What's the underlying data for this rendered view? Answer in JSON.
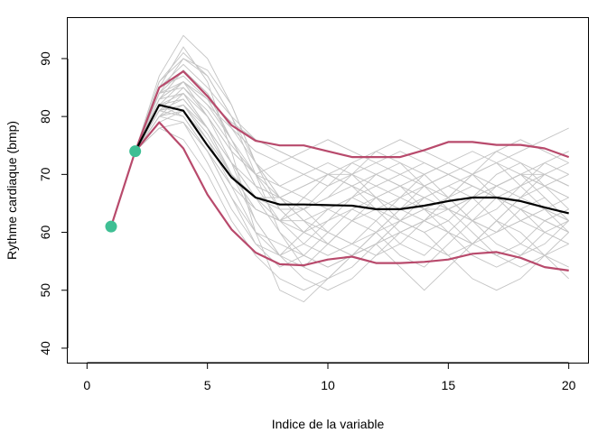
{
  "chart_data": {
    "type": "line",
    "xlabel": "Indice de la variable",
    "ylabel": "Rythme cardiaque (bmp)",
    "xlim": [
      -0.8,
      20.8
    ],
    "ylim": [
      37.5,
      97
    ],
    "x_ticks": [
      0,
      5,
      10,
      15,
      20
    ],
    "y_ticks": [
      40,
      50,
      60,
      70,
      80,
      90
    ],
    "grid": false,
    "colors": {
      "simulations": "#c4c4c4",
      "mean": "#000000",
      "bounds": "#b84a6c",
      "observed": "#3fbf94"
    },
    "observed_points": {
      "x": [
        1,
        2
      ],
      "y": [
        61,
        74
      ]
    },
    "series": [
      {
        "x": [
          2,
          3,
          4,
          5,
          6,
          7,
          8,
          9,
          10,
          11,
          12,
          13,
          14,
          15,
          16,
          17,
          18,
          19,
          20
        ],
        "y": [
          74,
          82,
          81,
          75,
          69.5,
          66,
          64.8,
          64.8,
          64.7,
          64.6,
          64,
          64,
          64.6,
          65.4,
          66,
          66,
          65.4,
          64.3,
          63.3
        ]
      },
      {
        "x": [
          2,
          3,
          4,
          5,
          6,
          7,
          8,
          9,
          10,
          11,
          12,
          13,
          14,
          15,
          16,
          17,
          18,
          19,
          20
        ],
        "y": [
          74,
          85,
          87.8,
          83.5,
          78.5,
          75.8,
          75,
          75,
          74,
          73,
          73,
          73,
          74.2,
          75.6,
          75.6,
          75.1,
          75.1,
          74.5,
          73
        ]
      },
      {
        "x": [
          2,
          3,
          4,
          5,
          6,
          7,
          8,
          9,
          10,
          11,
          12,
          13,
          14,
          15,
          16,
          17,
          18,
          19,
          20
        ],
        "y": [
          74,
          79,
          74.5,
          66.5,
          60.5,
          56.5,
          54.5,
          54.3,
          55.3,
          55.8,
          54.7,
          54.7,
          54.9,
          55.3,
          56.3,
          56.6,
          55.6,
          54,
          53.4
        ]
      }
    ],
    "simulations": [
      [
        74,
        86,
        90,
        88,
        82,
        72,
        64,
        60,
        58,
        62,
        66,
        68,
        64,
        60,
        58,
        62,
        66,
        70,
        68
      ],
      [
        74,
        84,
        88,
        84,
        76,
        68,
        66,
        64,
        60,
        58,
        60,
        64,
        68,
        66,
        62,
        60,
        64,
        66,
        62
      ],
      [
        74,
        82,
        86,
        80,
        72,
        62,
        56,
        54,
        58,
        62,
        60,
        56,
        54,
        58,
        62,
        66,
        64,
        60,
        58
      ],
      [
        74,
        80,
        84,
        78,
        70,
        64,
        62,
        66,
        70,
        68,
        64,
        60,
        62,
        66,
        70,
        72,
        68,
        64,
        60
      ],
      [
        74,
        85,
        92,
        86,
        74,
        60,
        50,
        48,
        52,
        56,
        58,
        54,
        50,
        54,
        58,
        62,
        60,
        56,
        52
      ],
      [
        74,
        83,
        86,
        82,
        78,
        74,
        72,
        70,
        68,
        70,
        72,
        74,
        72,
        70,
        68,
        66,
        68,
        70,
        72
      ],
      [
        74,
        81,
        80,
        74,
        66,
        58,
        54,
        56,
        60,
        64,
        62,
        58,
        56,
        60,
        64,
        68,
        70,
        66,
        62
      ],
      [
        74,
        84,
        85,
        80,
        74,
        70,
        68,
        66,
        64,
        62,
        64,
        66,
        68,
        70,
        68,
        66,
        64,
        62,
        64
      ],
      [
        74,
        87,
        94,
        90,
        82,
        72,
        66,
        62,
        60,
        58,
        56,
        58,
        62,
        66,
        70,
        74,
        72,
        68,
        64
      ],
      [
        74,
        80,
        82,
        76,
        68,
        60,
        56,
        58,
        62,
        66,
        70,
        72,
        70,
        66,
        62,
        58,
        56,
        58,
        62
      ],
      [
        74,
        82,
        84,
        80,
        74,
        70,
        72,
        74,
        76,
        74,
        72,
        70,
        68,
        70,
        72,
        74,
        76,
        74,
        72
      ],
      [
        74,
        78,
        76,
        70,
        62,
        56,
        52,
        50,
        52,
        56,
        60,
        62,
        60,
        56,
        52,
        50,
        52,
        56,
        58
      ],
      [
        74,
        83,
        88,
        84,
        78,
        72,
        68,
        70,
        72,
        70,
        66,
        62,
        60,
        62,
        66,
        70,
        72,
        70,
        68
      ],
      [
        74,
        81,
        83,
        78,
        72,
        66,
        62,
        60,
        62,
        64,
        66,
        68,
        66,
        64,
        62,
        60,
        62,
        64,
        66
      ],
      [
        74,
        85,
        89,
        85,
        80,
        76,
        74,
        72,
        70,
        68,
        66,
        64,
        66,
        68,
        70,
        72,
        74,
        76,
        78
      ],
      [
        74,
        80,
        79,
        72,
        64,
        58,
        56,
        60,
        64,
        66,
        64,
        62,
        64,
        66,
        68,
        66,
        64,
        62,
        60
      ],
      [
        74,
        84,
        86,
        82,
        76,
        70,
        64,
        60,
        58,
        56,
        58,
        62,
        66,
        68,
        66,
        62,
        58,
        56,
        54
      ],
      [
        74,
        79,
        81,
        76,
        70,
        66,
        64,
        64,
        66,
        68,
        70,
        68,
        66,
        64,
        66,
        68,
        70,
        68,
        66
      ],
      [
        74,
        86,
        91,
        87,
        80,
        72,
        66,
        64,
        66,
        70,
        74,
        76,
        74,
        72,
        70,
        68,
        70,
        72,
        70
      ],
      [
        74,
        82,
        80,
        74,
        66,
        60,
        58,
        56,
        54,
        56,
        60,
        64,
        66,
        64,
        60,
        56,
        54,
        56,
        60
      ],
      [
        74,
        83,
        84,
        78,
        70,
        64,
        62,
        64,
        68,
        72,
        74,
        72,
        68,
        64,
        62,
        64,
        68,
        72,
        74
      ],
      [
        74,
        81,
        85,
        81,
        75,
        70,
        66,
        62,
        58,
        56,
        58,
        60,
        62,
        60,
        58,
        60,
        62,
        64,
        62
      ],
      [
        74,
        80,
        82,
        78,
        72,
        68,
        66,
        68,
        70,
        72,
        70,
        68,
        70,
        72,
        74,
        72,
        70,
        68,
        66
      ],
      [
        74,
        85,
        87,
        83,
        76,
        68,
        62,
        58,
        56,
        58,
        62,
        66,
        70,
        72,
        70,
        66,
        62,
        60,
        58
      ],
      [
        74,
        82,
        83,
        78,
        72,
        66,
        60,
        56,
        54,
        56,
        58,
        60,
        58,
        56,
        58,
        62,
        66,
        68,
        70
      ],
      [
        74,
        78,
        79,
        74,
        68,
        64,
        62,
        62,
        64,
        66,
        68,
        70,
        72,
        70,
        68,
        66,
        64,
        62,
        60
      ],
      [
        74,
        84,
        90,
        87,
        80,
        70,
        60,
        54,
        52,
        54,
        58,
        62,
        64,
        62,
        58,
        56,
        58,
        62,
        64
      ],
      [
        74,
        80,
        81,
        76,
        70,
        66,
        66,
        68,
        70,
        70,
        68,
        66,
        64,
        64,
        66,
        68,
        70,
        70,
        68
      ],
      [
        74,
        83,
        86,
        83,
        79,
        76,
        74,
        72,
        70,
        68,
        66,
        64,
        62,
        64,
        66,
        68,
        66,
        64,
        62
      ],
      [
        74,
        81,
        82,
        77,
        70,
        62,
        56,
        52,
        50,
        52,
        56,
        60,
        62,
        60,
        56,
        54,
        56,
        60,
        62
      ]
    ]
  }
}
